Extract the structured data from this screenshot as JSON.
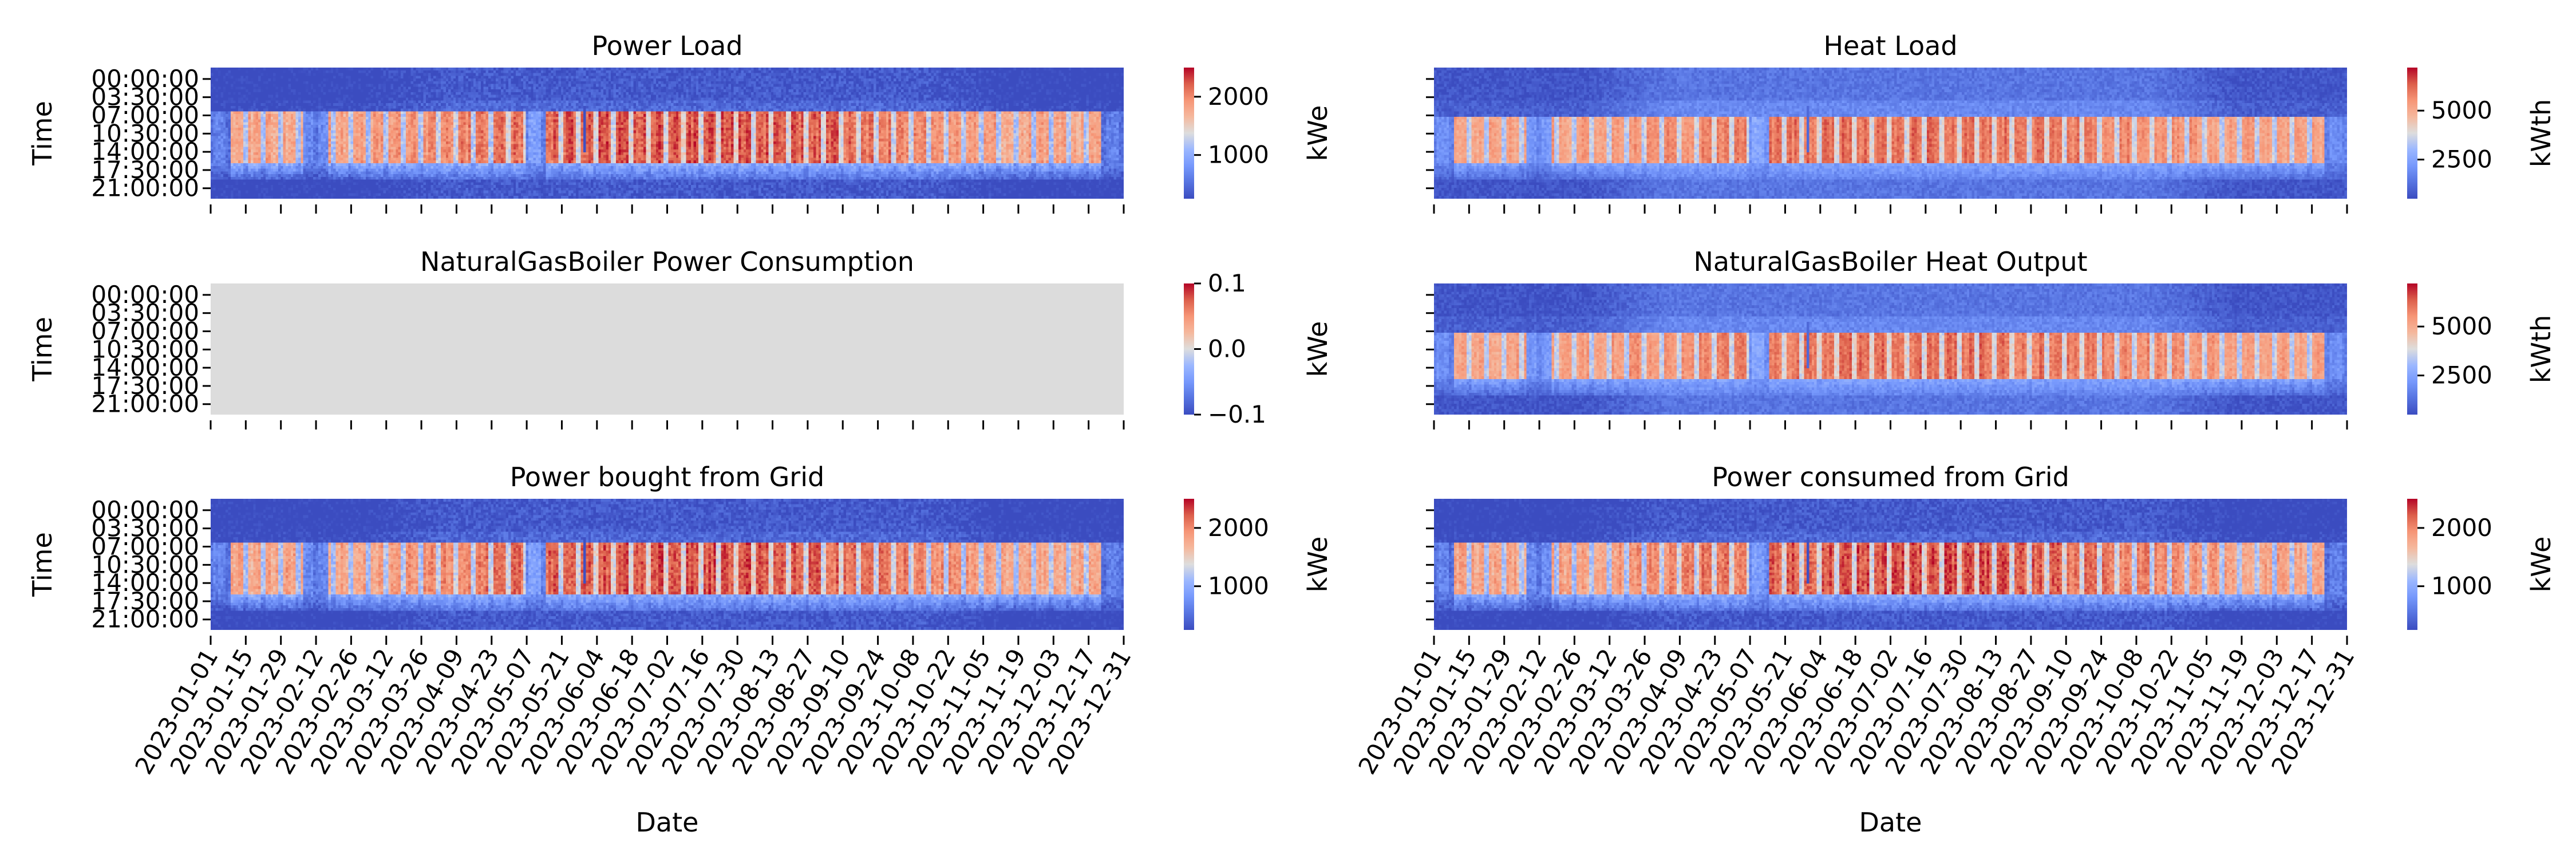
{
  "figure": {
    "colormap": "coolwarm",
    "colors": {
      "low": "#3b4cc0",
      "mid": "#dddddd",
      "high": "#b40426",
      "missing": "#dcdcdc",
      "text": "#000000"
    }
  },
  "chart_data": [
    {
      "type": "heatmap",
      "title": "Power Load",
      "xlabel": "",
      "ylabel": "Time",
      "colorbar_label": "kWe",
      "colorbar_ticks": [
        "1000",
        "2000"
      ],
      "colorbar_tick_values": [
        1000,
        2000
      ],
      "vmin": 250,
      "vmax": 2500,
      "ytick_labels": [
        "00:00:00",
        "03:30:00",
        "07:00:00",
        "10:30:00",
        "14:00:00",
        "17:30:00",
        "21:00:00"
      ],
      "show_ytick_labels": true,
      "xtick_labels": [],
      "profile": {
        "night": 350,
        "winter_night": 180,
        "day_base": 1800,
        "summer_boost": 450,
        "holiday_day": 350,
        "day_start_hour": 8,
        "day_end_hour": 17.5,
        "evening": 1000,
        "noise": 160
      },
      "missing": false
    },
    {
      "type": "heatmap",
      "title": "Heat Load",
      "xlabel": "",
      "ylabel": "",
      "colorbar_label": "kWth",
      "colorbar_ticks": [
        "2500",
        "5000"
      ],
      "colorbar_tick_values": [
        2500,
        5000
      ],
      "vmin": 500,
      "vmax": 7200,
      "ytick_labels": [
        "00:00:00",
        "03:30:00",
        "07:00:00",
        "10:30:00",
        "14:00:00",
        "17:30:00",
        "21:00:00"
      ],
      "show_ytick_labels": false,
      "xtick_labels": [],
      "profile": {
        "night": 1400,
        "winter_night": 700,
        "day_base": 5200,
        "summer_boost": 900,
        "holiday_day": 1200,
        "day_start_hour": 9,
        "day_end_hour": 17.5,
        "evening": 2500,
        "noise": 350
      },
      "missing": false
    },
    {
      "type": "heatmap",
      "title": "NaturalGasBoiler Power Consumption",
      "xlabel": "",
      "ylabel": "Time",
      "colorbar_label": "kWe",
      "colorbar_ticks": [
        "−0.1",
        "0.0",
        "0.1"
      ],
      "colorbar_tick_values": [
        -0.1,
        0.0,
        0.1
      ],
      "vmin": -0.1,
      "vmax": 0.1,
      "ytick_labels": [
        "00:00:00",
        "03:30:00",
        "07:00:00",
        "10:30:00",
        "14:00:00",
        "17:30:00",
        "21:00:00"
      ],
      "show_ytick_labels": true,
      "xtick_labels": [],
      "profile": null,
      "missing": true
    },
    {
      "type": "heatmap",
      "title": "NaturalGasBoiler Heat Output",
      "xlabel": "",
      "ylabel": "",
      "colorbar_label": "kWth",
      "colorbar_ticks": [
        "2500",
        "5000"
      ],
      "colorbar_tick_values": [
        2500,
        5000
      ],
      "vmin": 500,
      "vmax": 7200,
      "ytick_labels": [
        "00:00:00",
        "03:30:00",
        "07:00:00",
        "10:30:00",
        "14:00:00",
        "17:30:00",
        "21:00:00"
      ],
      "show_ytick_labels": false,
      "xtick_labels": [],
      "profile": {
        "night": 1400,
        "winter_night": 700,
        "day_base": 5200,
        "summer_boost": 900,
        "holiday_day": 1200,
        "day_start_hour": 9,
        "day_end_hour": 17.5,
        "evening": 2500,
        "noise": 350
      },
      "missing": false
    },
    {
      "type": "heatmap",
      "title": "Power bought from Grid",
      "xlabel": "Date",
      "ylabel": "Time",
      "colorbar_label": "kWe",
      "colorbar_ticks": [
        "1000",
        "2000"
      ],
      "colorbar_tick_values": [
        1000,
        2000
      ],
      "vmin": 250,
      "vmax": 2500,
      "ytick_labels": [
        "00:00:00",
        "03:30:00",
        "07:00:00",
        "10:30:00",
        "14:00:00",
        "17:30:00",
        "21:00:00"
      ],
      "show_ytick_labels": true,
      "xtick_labels": [
        "2023-01-01",
        "2023-01-15",
        "2023-01-29",
        "2023-02-12",
        "2023-02-26",
        "2023-03-12",
        "2023-03-26",
        "2023-04-09",
        "2023-04-23",
        "2023-05-07",
        "2023-05-21",
        "2023-06-04",
        "2023-06-18",
        "2023-07-02",
        "2023-07-16",
        "2023-07-30",
        "2023-08-13",
        "2023-08-27",
        "2023-09-10",
        "2023-09-24",
        "2023-10-08",
        "2023-10-22",
        "2023-11-05",
        "2023-11-19",
        "2023-12-03",
        "2023-12-17",
        "2023-12-31"
      ],
      "profile": {
        "night": 350,
        "winter_night": 180,
        "day_base": 1800,
        "summer_boost": 450,
        "holiday_day": 350,
        "day_start_hour": 8,
        "day_end_hour": 17.5,
        "evening": 1000,
        "noise": 160
      },
      "missing": false
    },
    {
      "type": "heatmap",
      "title": "Power consumed from Grid",
      "xlabel": "Date",
      "ylabel": "",
      "colorbar_label": "kWe",
      "colorbar_ticks": [
        "1000",
        "2000"
      ],
      "colorbar_tick_values": [
        1000,
        2000
      ],
      "vmin": 250,
      "vmax": 2500,
      "ytick_labels": [
        "00:00:00",
        "03:30:00",
        "07:00:00",
        "10:30:00",
        "14:00:00",
        "17:30:00",
        "21:00:00"
      ],
      "show_ytick_labels": false,
      "xtick_labels": [
        "2023-01-01",
        "2023-01-15",
        "2023-01-29",
        "2023-02-12",
        "2023-02-26",
        "2023-03-12",
        "2023-03-26",
        "2023-04-09",
        "2023-04-23",
        "2023-05-07",
        "2023-05-21",
        "2023-06-04",
        "2023-06-18",
        "2023-07-02",
        "2023-07-16",
        "2023-07-30",
        "2023-08-13",
        "2023-08-27",
        "2023-09-10",
        "2023-09-24",
        "2023-10-08",
        "2023-10-22",
        "2023-11-05",
        "2023-11-19",
        "2023-12-03",
        "2023-12-17",
        "2023-12-31"
      ],
      "profile": {
        "night": 350,
        "winter_night": 180,
        "day_base": 1800,
        "summer_boost": 450,
        "holiday_day": 350,
        "day_start_hour": 8,
        "day_end_hour": 17.5,
        "evening": 1000,
        "noise": 160
      },
      "missing": false
    }
  ]
}
